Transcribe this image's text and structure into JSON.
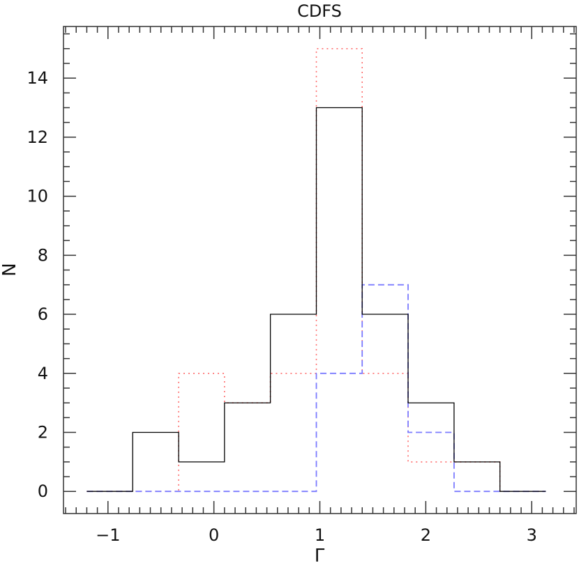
{
  "chart_data": {
    "type": "histogram",
    "title": "CDFS",
    "xlabel": "Γ",
    "ylabel": "N",
    "xlim": [
      -1.42,
      3.42
    ],
    "ylim": [
      -0.75,
      15.75
    ],
    "x_ticks": [
      -1,
      0,
      1,
      2,
      3
    ],
    "x_tick_labels": [
      "−1",
      "0",
      "1",
      "2",
      "3"
    ],
    "y_ticks": [
      0,
      2,
      4,
      6,
      8,
      10,
      12,
      14
    ],
    "y_tick_labels": [
      "0",
      "2",
      "4",
      "6",
      "8",
      "10",
      "12",
      "14"
    ],
    "bin_edges": [
      -1.2,
      -0.767,
      -0.333,
      0.1,
      0.533,
      0.967,
      1.4,
      1.833,
      2.267,
      2.7,
      3.133
    ],
    "grid": false,
    "series": [
      {
        "style": "solid",
        "color": "#000000",
        "values": [
          0,
          2,
          1,
          3,
          6,
          13,
          6,
          3,
          1,
          0
        ]
      },
      {
        "style": "dotted",
        "color": "#ff6b6b",
        "values": [
          0,
          0,
          4,
          3,
          4,
          15,
          4,
          1,
          1,
          0
        ]
      },
      {
        "style": "dashed",
        "color": "#7b7bff",
        "values": [
          0,
          0,
          0,
          0,
          0,
          4,
          7,
          2,
          0,
          0
        ]
      }
    ]
  }
}
